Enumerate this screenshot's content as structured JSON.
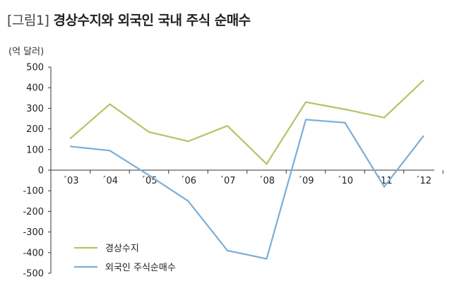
{
  "title": {
    "prefix": "[그림1]",
    "main": "경상수지와 외국인 국내 주식 순매수"
  },
  "chart_data": {
    "type": "line",
    "unit_label": "(억 달러)",
    "categories": [
      "´03",
      "´04",
      "´05",
      "´06",
      "´07",
      "´08",
      "´09",
      "´10",
      "´11",
      "´12"
    ],
    "ylim": [
      -500,
      500
    ],
    "yticks": [
      500,
      400,
      300,
      200,
      100,
      0,
      -100,
      -200,
      -300,
      -400,
      -500
    ],
    "grid": false,
    "legend_position": "bottom-left",
    "series": [
      {
        "name": "경상수지",
        "color": "#b2c565",
        "values": [
          155,
          320,
          185,
          140,
          215,
          30,
          330,
          295,
          255,
          435
        ]
      },
      {
        "name": "외국인 주식순매수",
        "color": "#7aaed8",
        "values": [
          115,
          95,
          -25,
          -150,
          -390,
          -430,
          245,
          230,
          -80,
          165
        ]
      }
    ]
  }
}
